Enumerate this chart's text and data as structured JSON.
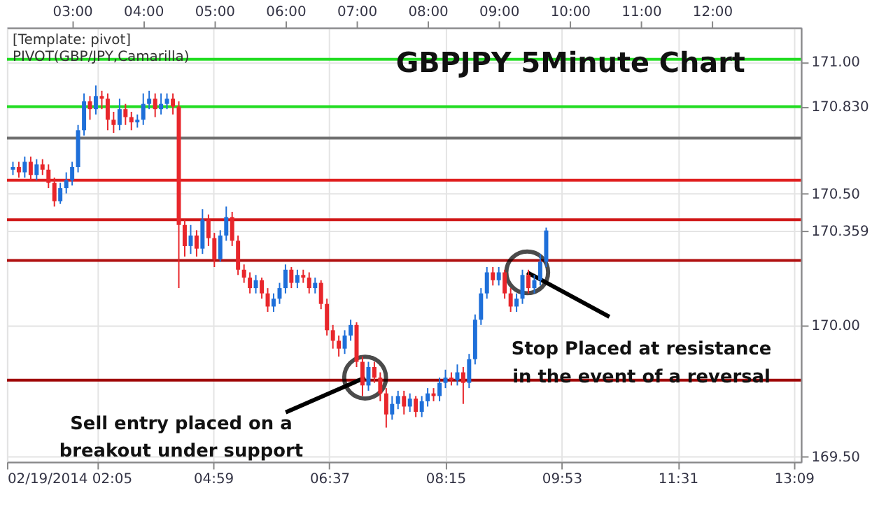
{
  "chart_data": {
    "type": "candlestick",
    "title": "GBPJPY 5Minute Chart",
    "annotations": [
      "[Template: pivot]",
      "PIVOT(GBP/JPY,Camarilla)",
      {
        "text": "Sell entry placed on a\nbreakout under support",
        "x": 7.12,
        "y": 169.8
      },
      {
        "text": "Stop Placed at resistance\nin the event of a reversal",
        "x": 9.4,
        "y": 170.2
      }
    ],
    "x": [
      2.167,
      2.25,
      2.333,
      2.417,
      2.5,
      2.583,
      2.667,
      2.75,
      2.833,
      2.917,
      3,
      3.083,
      3.167,
      3.25,
      3.333,
      3.417,
      3.5,
      3.583,
      3.667,
      3.75,
      3.833,
      3.917,
      4,
      4.083,
      4.167,
      4.25,
      4.333,
      4.417,
      4.5,
      4.583,
      4.667,
      4.75,
      4.833,
      4.917,
      5,
      5.083,
      5.167,
      5.25,
      5.333,
      5.417,
      5.5,
      5.583,
      5.667,
      5.75,
      5.833,
      5.917,
      6,
      6.083,
      6.167,
      6.25,
      6.333,
      6.417,
      6.5,
      6.583,
      6.667,
      6.75,
      6.833,
      6.917,
      7,
      7.083,
      7.167,
      7.25,
      7.333,
      7.417,
      7.5,
      7.583,
      7.667,
      7.75,
      7.833,
      7.917,
      8,
      8.083,
      8.167,
      8.25,
      8.333,
      8.417,
      8.5,
      8.583,
      8.667,
      8.75,
      8.833,
      8.917,
      9,
      9.083,
      9.167,
      9.25,
      9.333,
      9.417,
      9.5,
      9.583,
      9.667
    ],
    "ohlc": [
      [
        170.59,
        170.62,
        170.57,
        170.6
      ],
      [
        170.6,
        170.62,
        170.56,
        170.58
      ],
      [
        170.58,
        170.64,
        170.56,
        170.62
      ],
      [
        170.62,
        170.64,
        170.55,
        170.57
      ],
      [
        170.57,
        170.63,
        170.55,
        170.61
      ],
      [
        170.61,
        170.63,
        170.57,
        170.59
      ],
      [
        170.59,
        170.61,
        170.52,
        170.54
      ],
      [
        170.54,
        170.56,
        170.45,
        170.47
      ],
      [
        170.47,
        170.54,
        170.46,
        170.52
      ],
      [
        170.52,
        170.58,
        170.5,
        170.55
      ],
      [
        170.55,
        170.62,
        170.53,
        170.6
      ],
      [
        170.6,
        170.76,
        170.58,
        170.74
      ],
      [
        170.74,
        170.88,
        170.72,
        170.85
      ],
      [
        170.85,
        170.87,
        170.78,
        170.82
      ],
      [
        170.82,
        170.91,
        170.8,
        170.87
      ],
      [
        170.87,
        170.89,
        170.82,
        170.86
      ],
      [
        170.86,
        170.88,
        170.74,
        170.78
      ],
      [
        170.78,
        170.81,
        170.73,
        170.76
      ],
      [
        170.76,
        170.86,
        170.74,
        170.82
      ],
      [
        170.82,
        170.84,
        170.76,
        170.79
      ],
      [
        170.79,
        170.81,
        170.74,
        170.77
      ],
      [
        170.77,
        170.8,
        170.75,
        170.78
      ],
      [
        170.78,
        170.88,
        170.76,
        170.84
      ],
      [
        170.84,
        170.89,
        170.82,
        170.86
      ],
      [
        170.86,
        170.88,
        170.79,
        170.82
      ],
      [
        170.82,
        170.88,
        170.8,
        170.84
      ],
      [
        170.84,
        170.88,
        170.82,
        170.86
      ],
      [
        170.86,
        170.88,
        170.8,
        170.83
      ],
      [
        170.83,
        170.85,
        170.14,
        170.38
      ],
      [
        170.38,
        170.4,
        170.26,
        170.3
      ],
      [
        170.3,
        170.38,
        170.27,
        170.34
      ],
      [
        170.34,
        170.36,
        170.26,
        170.29
      ],
      [
        170.29,
        170.44,
        170.27,
        170.4
      ],
      [
        170.4,
        170.42,
        170.3,
        170.33
      ],
      [
        170.33,
        170.35,
        170.22,
        170.25
      ],
      [
        170.25,
        170.36,
        170.24,
        170.34
      ],
      [
        170.34,
        170.45,
        170.32,
        170.41
      ],
      [
        170.41,
        170.43,
        170.3,
        170.32
      ],
      [
        170.32,
        170.34,
        170.19,
        170.21
      ],
      [
        170.21,
        170.23,
        170.16,
        170.18
      ],
      [
        170.18,
        170.2,
        170.12,
        170.14
      ],
      [
        170.14,
        170.19,
        170.12,
        170.17
      ],
      [
        170.17,
        170.18,
        170.1,
        170.12
      ],
      [
        170.12,
        170.14,
        170.05,
        170.07
      ],
      [
        170.07,
        170.12,
        170.05,
        170.1
      ],
      [
        170.1,
        170.16,
        170.08,
        170.14
      ],
      [
        170.14,
        170.23,
        170.12,
        170.21
      ],
      [
        170.21,
        170.22,
        170.14,
        170.16
      ],
      [
        170.16,
        170.21,
        170.14,
        170.19
      ],
      [
        170.19,
        170.21,
        170.16,
        170.18
      ],
      [
        170.18,
        170.2,
        170.12,
        170.14
      ],
      [
        170.14,
        170.18,
        170.12,
        170.16
      ],
      [
        170.16,
        170.17,
        170.06,
        170.08
      ],
      [
        170.08,
        170.1,
        169.96,
        169.98
      ],
      [
        169.98,
        170.0,
        169.91,
        169.94
      ],
      [
        169.94,
        169.96,
        169.88,
        169.91
      ],
      [
        169.91,
        169.98,
        169.89,
        169.96
      ],
      [
        169.96,
        170.02,
        169.94,
        170.0
      ],
      [
        170.0,
        170.01,
        169.84,
        169.86
      ],
      [
        169.86,
        169.88,
        169.73,
        169.77
      ],
      [
        169.77,
        169.86,
        169.75,
        169.84
      ],
      [
        169.84,
        169.86,
        169.78,
        169.8
      ],
      [
        169.8,
        169.82,
        169.71,
        169.74
      ],
      [
        169.74,
        169.76,
        169.61,
        169.66
      ],
      [
        169.66,
        169.73,
        169.64,
        169.7
      ],
      [
        169.7,
        169.75,
        169.68,
        169.73
      ],
      [
        169.73,
        169.75,
        169.66,
        169.69
      ],
      [
        169.69,
        169.74,
        169.67,
        169.72
      ],
      [
        169.72,
        169.73,
        169.65,
        169.67
      ],
      [
        169.67,
        169.73,
        169.65,
        169.71
      ],
      [
        169.71,
        169.76,
        169.69,
        169.74
      ],
      [
        169.74,
        169.76,
        169.71,
        169.73
      ],
      [
        169.73,
        169.8,
        169.71,
        169.78
      ],
      [
        169.78,
        169.83,
        169.76,
        169.8
      ],
      [
        169.8,
        169.82,
        169.77,
        169.79
      ],
      [
        169.79,
        169.85,
        169.77,
        169.82
      ],
      [
        169.82,
        169.84,
        169.7,
        169.78
      ],
      [
        169.78,
        169.89,
        169.76,
        169.87
      ],
      [
        169.87,
        170.04,
        169.85,
        170.02
      ],
      [
        170.02,
        170.14,
        170.0,
        170.12
      ],
      [
        170.12,
        170.22,
        170.1,
        170.2
      ],
      [
        170.2,
        170.22,
        170.15,
        170.17
      ],
      [
        170.17,
        170.22,
        170.15,
        170.2
      ],
      [
        170.2,
        170.21,
        170.1,
        170.12
      ],
      [
        170.12,
        170.14,
        170.05,
        170.07
      ],
      [
        170.07,
        170.12,
        170.05,
        170.1
      ],
      [
        170.1,
        170.21,
        170.08,
        170.19
      ],
      [
        170.19,
        170.21,
        170.12,
        170.14
      ],
      [
        170.14,
        170.19,
        170.12,
        170.17
      ],
      [
        170.17,
        170.27,
        170.15,
        170.24
      ],
      [
        170.24,
        170.37,
        170.22,
        170.359
      ]
    ],
    "colors": [
      "#1e6fd9",
      "#e8262b",
      "#1e6fd9",
      "#e8262b",
      "#1e6fd9",
      "#e8262b",
      "#e8262b",
      "#e8262b",
      "#1e6fd9",
      "#1e6fd9",
      "#1e6fd9",
      "#1e6fd9",
      "#1e6fd9",
      "#e8262b",
      "#1e6fd9",
      "#e8262b",
      "#e8262b",
      "#e8262b",
      "#1e6fd9",
      "#e8262b",
      "#e8262b",
      "#1e6fd9",
      "#1e6fd9",
      "#1e6fd9",
      "#e8262b",
      "#1e6fd9",
      "#1e6fd9",
      "#e8262b",
      "#e8262b",
      "#e8262b",
      "#1e6fd9",
      "#e8262b",
      "#1e6fd9",
      "#e8262b",
      "#e8262b",
      "#1e6fd9",
      "#1e6fd9",
      "#e8262b",
      "#e8262b",
      "#e8262b",
      "#e8262b",
      "#1e6fd9",
      "#e8262b",
      "#e8262b",
      "#1e6fd9",
      "#1e6fd9",
      "#1e6fd9",
      "#e8262b",
      "#1e6fd9",
      "#e8262b",
      "#e8262b",
      "#1e6fd9",
      "#e8262b",
      "#e8262b",
      "#e8262b",
      "#e8262b",
      "#1e6fd9",
      "#1e6fd9",
      "#e8262b",
      "#e8262b",
      "#1e6fd9",
      "#e8262b",
      "#e8262b",
      "#e8262b",
      "#1e6fd9",
      "#1e6fd9",
      "#e8262b",
      "#1e6fd9",
      "#e8262b",
      "#1e6fd9",
      "#1e6fd9",
      "#e8262b",
      "#1e6fd9",
      "#1e6fd9",
      "#e8262b",
      "#1e6fd9",
      "#e8262b",
      "#1e6fd9",
      "#1e6fd9",
      "#1e6fd9",
      "#1e6fd9",
      "#e8262b",
      "#1e6fd9",
      "#e8262b",
      "#e8262b",
      "#1e6fd9",
      "#1e6fd9",
      "#e8262b",
      "#1e6fd9",
      "#1e6fd9",
      "#1e6fd9"
    ],
    "xlim": [
      2.083,
      13.25
    ],
    "xticks": [
      {
        "value": 2.083,
        "label": "02/19/2014 02:05"
      },
      {
        "value": 3.35,
        "label": null
      },
      {
        "value": 4.983,
        "label": "04:59"
      },
      {
        "value": 6.617,
        "label": "06:37"
      },
      {
        "value": 8.25,
        "label": "08:15"
      },
      {
        "value": 9.883,
        "label": "09:53"
      },
      {
        "value": 11.517,
        "label": "11:31"
      },
      {
        "value": 13.15,
        "label": "13:09"
      }
    ],
    "x2lim": [
      2.083,
      13.25
    ],
    "x2ticks": [
      {
        "value": 3,
        "label": "03:00"
      },
      {
        "value": 4,
        "label": "04:00"
      },
      {
        "value": 5,
        "label": "05:00"
      },
      {
        "value": 6,
        "label": "06:00"
      },
      {
        "value": 7,
        "label": "07:00"
      },
      {
        "value": 8,
        "label": "08:00"
      },
      {
        "value": 9,
        "label": "09:00"
      },
      {
        "value": 10,
        "label": "10:00"
      },
      {
        "value": 11,
        "label": "11:00"
      },
      {
        "value": 12,
        "label": "12:00"
      }
    ],
    "ylim": [
      169.48,
      171.13
    ],
    "yticks": [
      {
        "value": 171,
        "label": "171.00"
      },
      {
        "value": 170.83,
        "label": "170.830"
      },
      {
        "value": 170.5,
        "label": "170.50"
      },
      {
        "value": 170.359,
        "label": "170.359"
      },
      {
        "value": 170,
        "label": "170.00"
      },
      {
        "value": 169.5,
        "label": "169.50"
      }
    ],
    "ref_lines": [
      {
        "axis": "y",
        "value": 171.01,
        "color": "#22dd22"
      },
      {
        "axis": "y",
        "value": 170.83,
        "color": "#22dd22"
      },
      {
        "axis": "y",
        "value": 170.71,
        "color": "#707070"
      },
      {
        "axis": "y",
        "value": 170.55,
        "color": "#e02020"
      },
      {
        "axis": "y",
        "value": 170.4,
        "color": "#d01818"
      },
      {
        "axis": "y",
        "value": 170.245,
        "color": "#b01010"
      },
      {
        "axis": "y",
        "value": 169.79,
        "color": "#a00808"
      }
    ],
    "grid": true
  }
}
